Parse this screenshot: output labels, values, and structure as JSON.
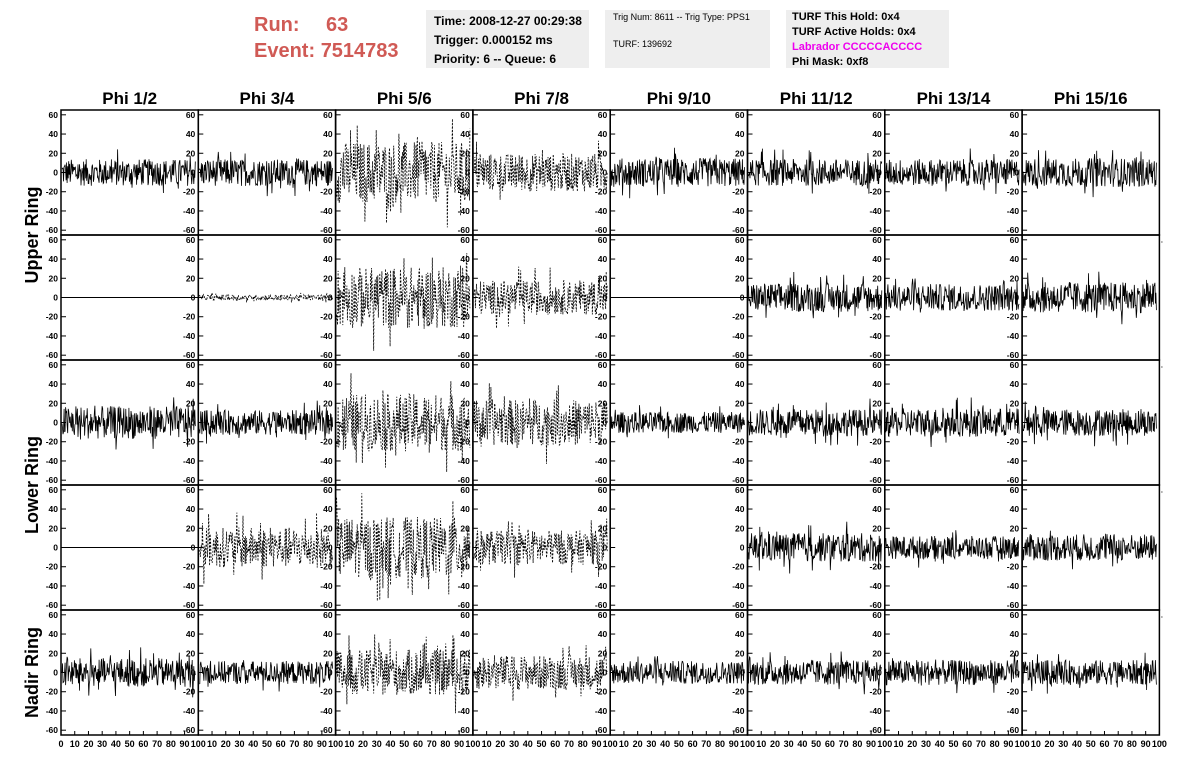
{
  "header": {
    "run_label": "Run:",
    "run_value": "63",
    "event_label": "Event:",
    "event_value": "7514783",
    "time": "Time: 2008-12-27 00:29:38",
    "trigger": "Trigger: 0.000152 ms",
    "priority": "Priority: 6 -- Queue: 6",
    "trig_num": "Trig Num: 8611 -- Trig Type: PPS1",
    "turf": "TURF: 139692",
    "turf_this_hold": "TURF This Hold: 0x4",
    "turf_active_holds": "TURF Active Holds: 0x4",
    "labrador": "Labrador CCCCCACCCC",
    "phi_mask": "Phi Mask: 0xf8",
    "labrador_color": "#ee00ee",
    "run_color": "#d05a55"
  },
  "chart_data": {
    "type": "line",
    "title": "",
    "columns": [
      "Phi 1/2",
      "Phi 3/4",
      "Phi 5/6",
      "Phi 7/8",
      "Phi 9/10",
      "Phi 11/12",
      "Phi 13/14",
      "Phi 15/16"
    ],
    "rows": [
      "Upper Ring",
      "Upper Ring",
      "Lower Ring",
      "Lower Ring",
      "Nadir Ring"
    ],
    "row_labels": [
      "Upper Ring",
      "Lower Ring",
      "Nadir Ring"
    ],
    "ylim": [
      -65,
      65
    ],
    "xlim": [
      0,
      100
    ],
    "yticks": [
      -60,
      -40,
      -20,
      0,
      20,
      40,
      60
    ],
    "ytick_labels": [
      "-60",
      "-40",
      "-20",
      "0",
      "20",
      "40",
      "60"
    ],
    "xticks": [
      0,
      10,
      20,
      30,
      40,
      50,
      60,
      70,
      80,
      90,
      100
    ],
    "xtick_labels": [
      "0",
      "10",
      "20",
      "30",
      "40",
      "50",
      "60",
      "70",
      "80",
      "90",
      "100"
    ],
    "panels": [
      [
        {
          "amp": 14,
          "style": "solid"
        },
        {
          "amp": 14,
          "style": "solid"
        },
        {
          "amp": 32,
          "style": "dashed"
        },
        {
          "amp": 20,
          "style": "dashed"
        },
        {
          "amp": 15,
          "style": "solid"
        },
        {
          "amp": 14,
          "style": "solid"
        },
        {
          "amp": 14,
          "style": "solid"
        },
        {
          "amp": 15,
          "style": "solid"
        }
      ],
      [
        {
          "amp": 0,
          "style": "flat"
        },
        {
          "amp": 3,
          "style": "dashed"
        },
        {
          "amp": 32,
          "style": "dashed"
        },
        {
          "amp": 18,
          "style": "dashed"
        },
        {
          "amp": 0,
          "style": "flat"
        },
        {
          "amp": 15,
          "style": "solid"
        },
        {
          "amp": 14,
          "style": "solid"
        },
        {
          "amp": 16,
          "style": "solid"
        }
      ],
      [
        {
          "amp": 17,
          "style": "solid"
        },
        {
          "amp": 13,
          "style": "solid"
        },
        {
          "amp": 30,
          "style": "dashed"
        },
        {
          "amp": 24,
          "style": "dashed"
        },
        {
          "amp": 11,
          "style": "solid"
        },
        {
          "amp": 14,
          "style": "solid"
        },
        {
          "amp": 15,
          "style": "solid"
        },
        {
          "amp": 14,
          "style": "solid"
        }
      ],
      [
        {
          "amp": 0,
          "style": "flat"
        },
        {
          "amp": 21,
          "style": "dashed"
        },
        {
          "amp": 32,
          "style": "dashed"
        },
        {
          "amp": 18,
          "style": "dashed"
        },
        {
          "amp": null,
          "style": "empty"
        },
        {
          "amp": 15,
          "style": "solid"
        },
        {
          "amp": 12,
          "style": "solid"
        },
        {
          "amp": 14,
          "style": "solid"
        }
      ],
      [
        {
          "amp": 15,
          "style": "solid"
        },
        {
          "amp": 12,
          "style": "solid"
        },
        {
          "amp": 24,
          "style": "dashed"
        },
        {
          "amp": 18,
          "style": "dashed"
        },
        {
          "amp": 12,
          "style": "solid"
        },
        {
          "amp": 13,
          "style": "solid"
        },
        {
          "amp": 13,
          "style": "solid"
        },
        {
          "amp": 13,
          "style": "solid"
        }
      ]
    ]
  }
}
